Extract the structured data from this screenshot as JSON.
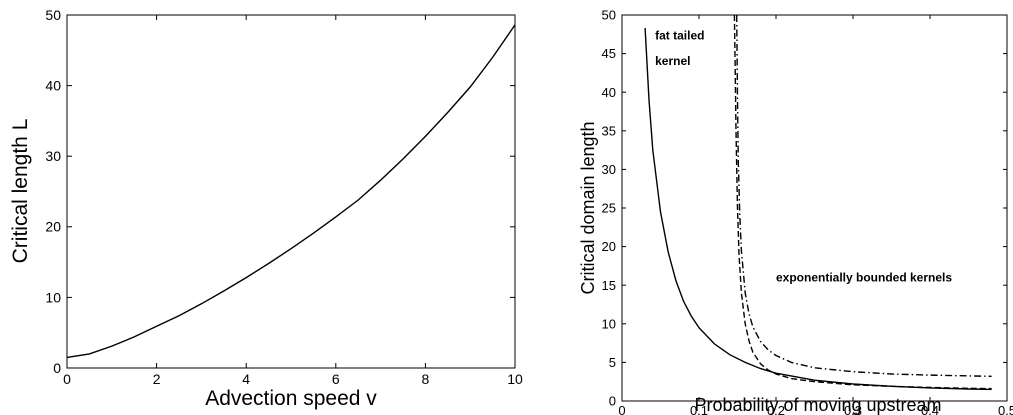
{
  "chart_data": [
    {
      "type": "line",
      "title": "",
      "xlabel": "Advection speed v",
      "ylabel": "Critical length L",
      "xlim": [
        0,
        10
      ],
      "ylim": [
        0,
        50
      ],
      "xticks": [
        0,
        2,
        4,
        6,
        8,
        10
      ],
      "yticks": [
        0,
        10,
        20,
        30,
        40,
        50
      ],
      "grid": false,
      "series": [
        {
          "style": "solid",
          "x": [
            0,
            0.5,
            1,
            1.5,
            2,
            2.5,
            3,
            3.5,
            4,
            4.5,
            5,
            5.5,
            6,
            6.5,
            7,
            7.5,
            8,
            8.5,
            9,
            9.5,
            10
          ],
          "y": [
            1.5,
            2.0,
            3.1,
            4.4,
            5.9,
            7.4,
            9.1,
            10.9,
            12.8,
            14.8,
            16.9,
            19.1,
            21.4,
            23.8,
            26.6,
            29.6,
            32.8,
            36.2,
            39.8,
            44.0,
            48.6
          ]
        }
      ]
    },
    {
      "type": "line",
      "title": "",
      "xlabel": "Probability of moving upstream",
      "ylabel": "Critical domain length",
      "xlim": [
        0,
        0.5
      ],
      "ylim": [
        0,
        50
      ],
      "xticks": [
        0,
        0.1,
        0.2,
        0.3,
        0.4,
        0.5
      ],
      "yticks": [
        0,
        5,
        10,
        15,
        20,
        25,
        30,
        35,
        40,
        45,
        50
      ],
      "grid": false,
      "annotations": [
        {
          "text": "fat tailed",
          "x": 0.043,
          "y": 46.8
        },
        {
          "text": "kernel",
          "x": 0.043,
          "y": 43.5
        },
        {
          "text": "exponentially bounded kernels",
          "x": 0.2,
          "y": 15.5
        }
      ],
      "series": [
        {
          "style": "solid",
          "x": [
            0.03,
            0.035,
            0.04,
            0.05,
            0.06,
            0.07,
            0.08,
            0.09,
            0.1,
            0.12,
            0.14,
            0.16,
            0.18,
            0.2,
            0.25,
            0.3,
            0.35,
            0.4,
            0.45,
            0.48
          ],
          "y": [
            48.3,
            39.0,
            32.5,
            24.5,
            19.3,
            15.6,
            12.9,
            11.0,
            9.5,
            7.4,
            6.0,
            5.0,
            4.2,
            3.6,
            2.7,
            2.2,
            1.9,
            1.7,
            1.55,
            1.5
          ]
        },
        {
          "style": "dashed",
          "x": [
            0.146,
            0.147,
            0.148,
            0.15,
            0.152,
            0.155,
            0.16,
            0.165,
            0.17,
            0.18,
            0.19,
            0.2,
            0.22,
            0.25,
            0.3,
            0.35,
            0.4,
            0.45,
            0.48
          ],
          "y": [
            50,
            43,
            35,
            25,
            19,
            14,
            10,
            7.8,
            6.3,
            4.8,
            4.0,
            3.5,
            2.9,
            2.5,
            2.1,
            1.9,
            1.75,
            1.65,
            1.6
          ]
        },
        {
          "style": "dashdot",
          "x": [
            0.149,
            0.15,
            0.151,
            0.153,
            0.155,
            0.16,
            0.165,
            0.17,
            0.18,
            0.19,
            0.2,
            0.22,
            0.25,
            0.3,
            0.35,
            0.4,
            0.45,
            0.48
          ],
          "y": [
            50,
            39,
            31,
            24,
            19.5,
            14,
            11.3,
            9.6,
            7.7,
            6.6,
            5.9,
            5.0,
            4.3,
            3.8,
            3.5,
            3.35,
            3.25,
            3.2
          ]
        }
      ]
    }
  ]
}
